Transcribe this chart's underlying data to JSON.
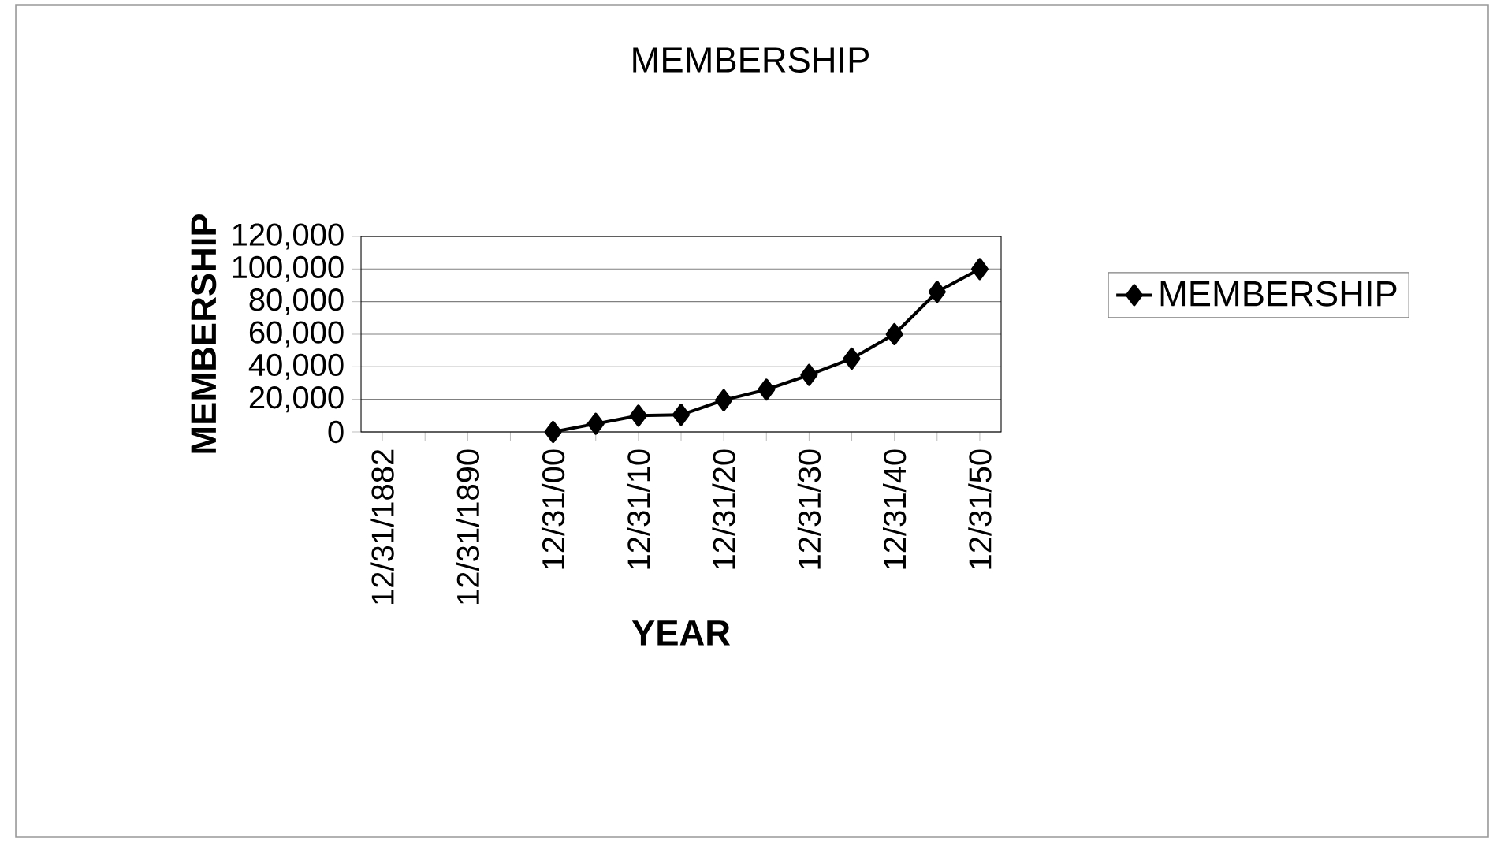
{
  "chart_data": {
    "type": "line",
    "title": "MEMBERSHIP",
    "xlabel": "YEAR",
    "ylabel": "MEMBERSHIP",
    "categories": [
      "12/31/1882",
      null,
      "12/31/1890",
      null,
      "12/31/00",
      null,
      "12/31/10",
      null,
      "12/31/20",
      null,
      "12/31/30",
      null,
      "12/31/40",
      null,
      "12/31/50"
    ],
    "series": [
      {
        "name": "MEMBERSHIP",
        "color": "#000000",
        "values": [
          null,
          null,
          null,
          null,
          0,
          5000,
          10000,
          10500,
          19500,
          26000,
          35000,
          45000,
          60000,
          86000,
          100000
        ]
      }
    ],
    "ylim": [
      0,
      120000
    ],
    "yticks": [
      {
        "value": 0,
        "label": "0"
      },
      {
        "value": 20000,
        "label": "20,000"
      },
      {
        "value": 40000,
        "label": "40,000"
      },
      {
        "value": 60000,
        "label": "60,000"
      },
      {
        "value": 80000,
        "label": "80,000"
      },
      {
        "value": 100000,
        "label": "100,000"
      },
      {
        "value": 120000,
        "label": "120,000"
      }
    ],
    "grid": "y",
    "legend": "right",
    "marker": "diamond",
    "line_style": "solid"
  }
}
